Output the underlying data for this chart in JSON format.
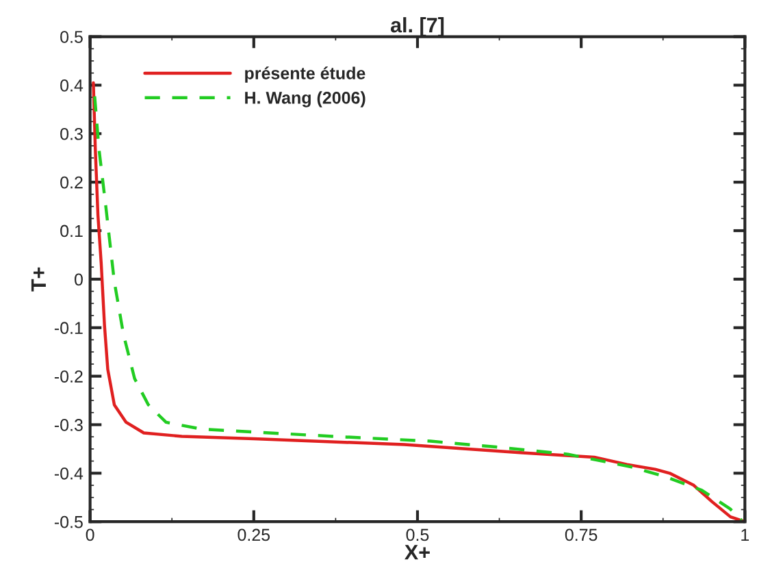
{
  "chart_data": {
    "type": "line",
    "title": "al. [7]",
    "xlabel": "X+",
    "ylabel": "T+",
    "xlim": [
      0,
      1
    ],
    "ylim": [
      -0.5,
      0.5
    ],
    "xticks": [
      0,
      0.25,
      0.5,
      0.75,
      1
    ],
    "yticks": [
      -0.5,
      -0.4,
      -0.3,
      -0.2,
      -0.1,
      0,
      0.1,
      0.2,
      0.3,
      0.4,
      0.5
    ],
    "grid": false,
    "legend": "top left",
    "series": [
      {
        "name": "présente étude",
        "color": "#e02020",
        "line_style": "solid",
        "x": [
          0.005,
          0.008,
          0.012,
          0.017,
          0.022,
          0.027,
          0.037,
          0.055,
          0.082,
          0.14,
          0.25,
          0.48,
          0.66,
          0.77,
          0.82,
          0.863,
          0.885,
          0.922,
          0.95,
          0.978,
          1.0
        ],
        "values": [
          0.405,
          0.268,
          0.132,
          0.032,
          -0.095,
          -0.186,
          -0.259,
          -0.295,
          -0.317,
          -0.324,
          -0.329,
          -0.341,
          -0.358,
          -0.367,
          -0.382,
          -0.392,
          -0.4,
          -0.425,
          -0.459,
          -0.49,
          -0.5
        ]
      },
      {
        "name": "H. Wang (2006)",
        "color": "#22cc22",
        "line_style": "dashed",
        "x": [
          0.007,
          0.0136,
          0.024,
          0.037,
          0.051,
          0.068,
          0.089,
          0.116,
          0.17,
          0.262,
          0.37,
          0.52,
          0.62,
          0.73,
          0.826,
          0.876,
          0.934,
          0.977,
          0.995
        ],
        "values": [
          0.377,
          0.268,
          0.15,
          -0.005,
          -0.114,
          -0.205,
          -0.259,
          -0.295,
          -0.309,
          -0.316,
          -0.324,
          -0.334,
          -0.346,
          -0.361,
          -0.387,
          -0.406,
          -0.435,
          -0.473,
          -0.497
        ]
      }
    ]
  }
}
